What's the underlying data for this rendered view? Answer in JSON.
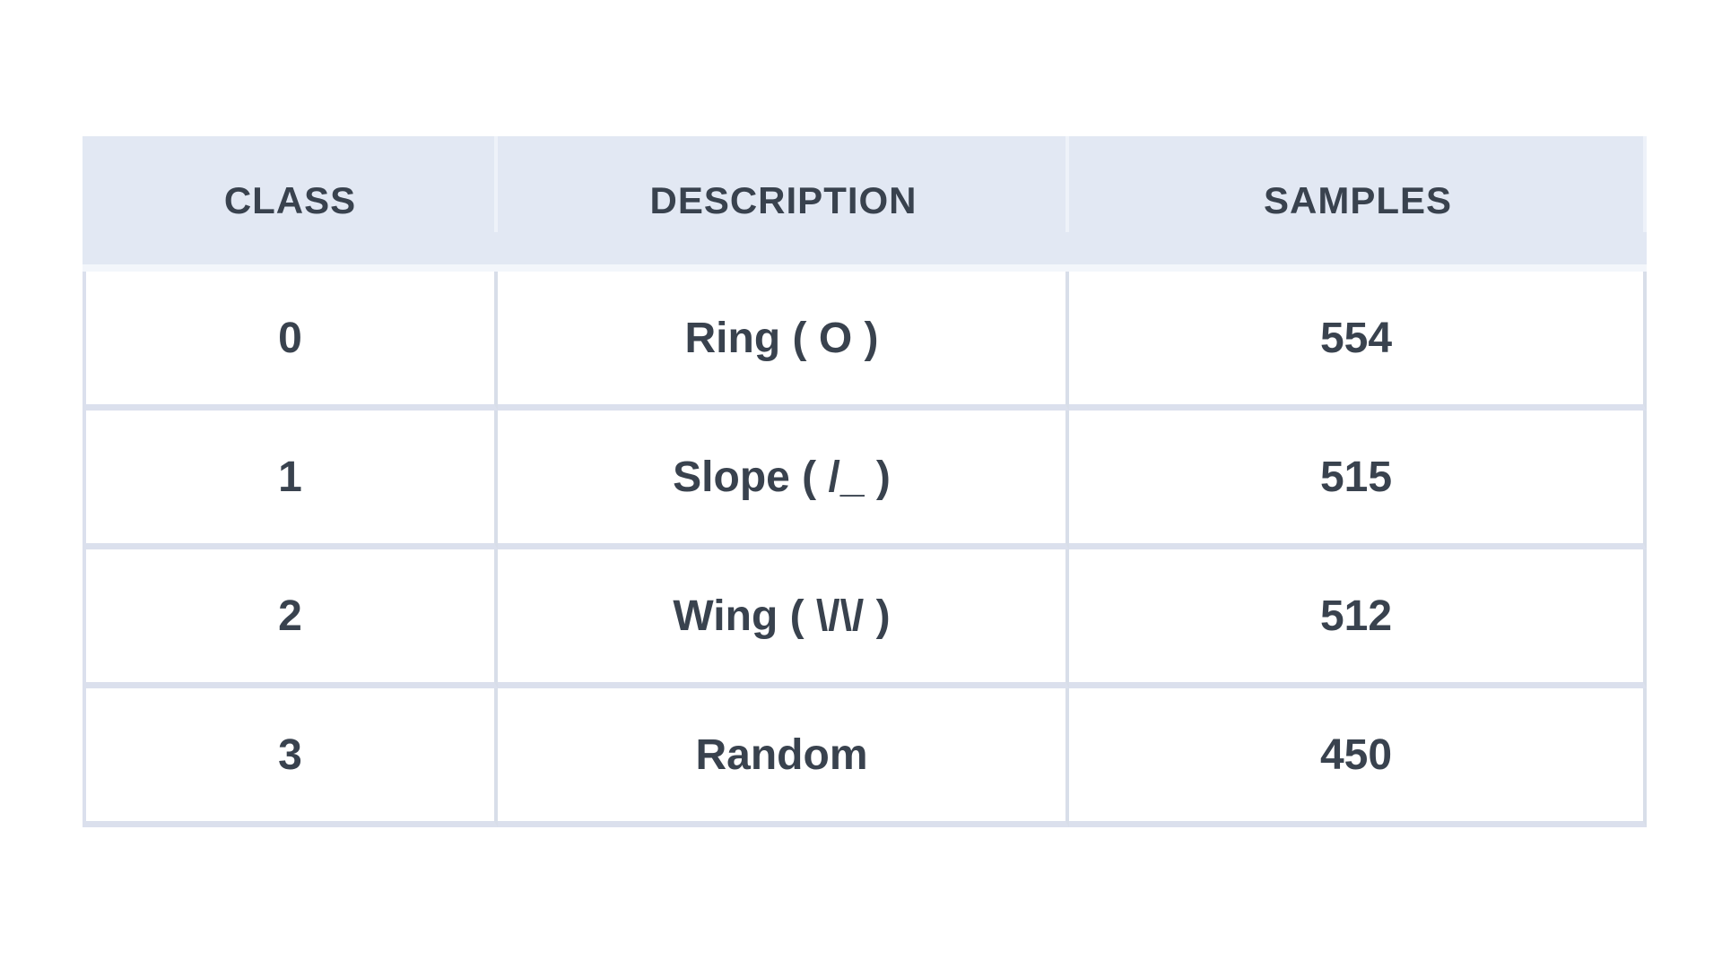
{
  "table": {
    "columns": [
      "CLASS",
      "DESCRIPTION",
      "SAMPLES"
    ],
    "rows": [
      {
        "class": "0",
        "description": "Ring ( O )",
        "samples": "554"
      },
      {
        "class": "1",
        "description": "Slope ( /_ )",
        "samples": "515"
      },
      {
        "class": "2",
        "description": "Wing ( \\/\\/ )",
        "samples": "512"
      },
      {
        "class": "3",
        "description": "Random",
        "samples": "450"
      }
    ]
  },
  "chart_data": {
    "type": "table",
    "title": "",
    "columns": [
      "CLASS",
      "DESCRIPTION",
      "SAMPLES"
    ],
    "rows": [
      [
        "0",
        "Ring ( O )",
        554
      ],
      [
        "1",
        "Slope ( /_ )",
        515
      ],
      [
        "2",
        "Wing ( \\/\\/ )",
        512
      ],
      [
        "3",
        "Random",
        450
      ]
    ]
  },
  "colors": {
    "header_bg": "#e2e8f3",
    "text": "#39424e",
    "row_divider": "#dbe0ed",
    "cell_separator": "#d8dee9",
    "header_cell_separator": "#eef2f9",
    "header_underline": "#f3f6fb",
    "page_bg": "#ffffff"
  }
}
